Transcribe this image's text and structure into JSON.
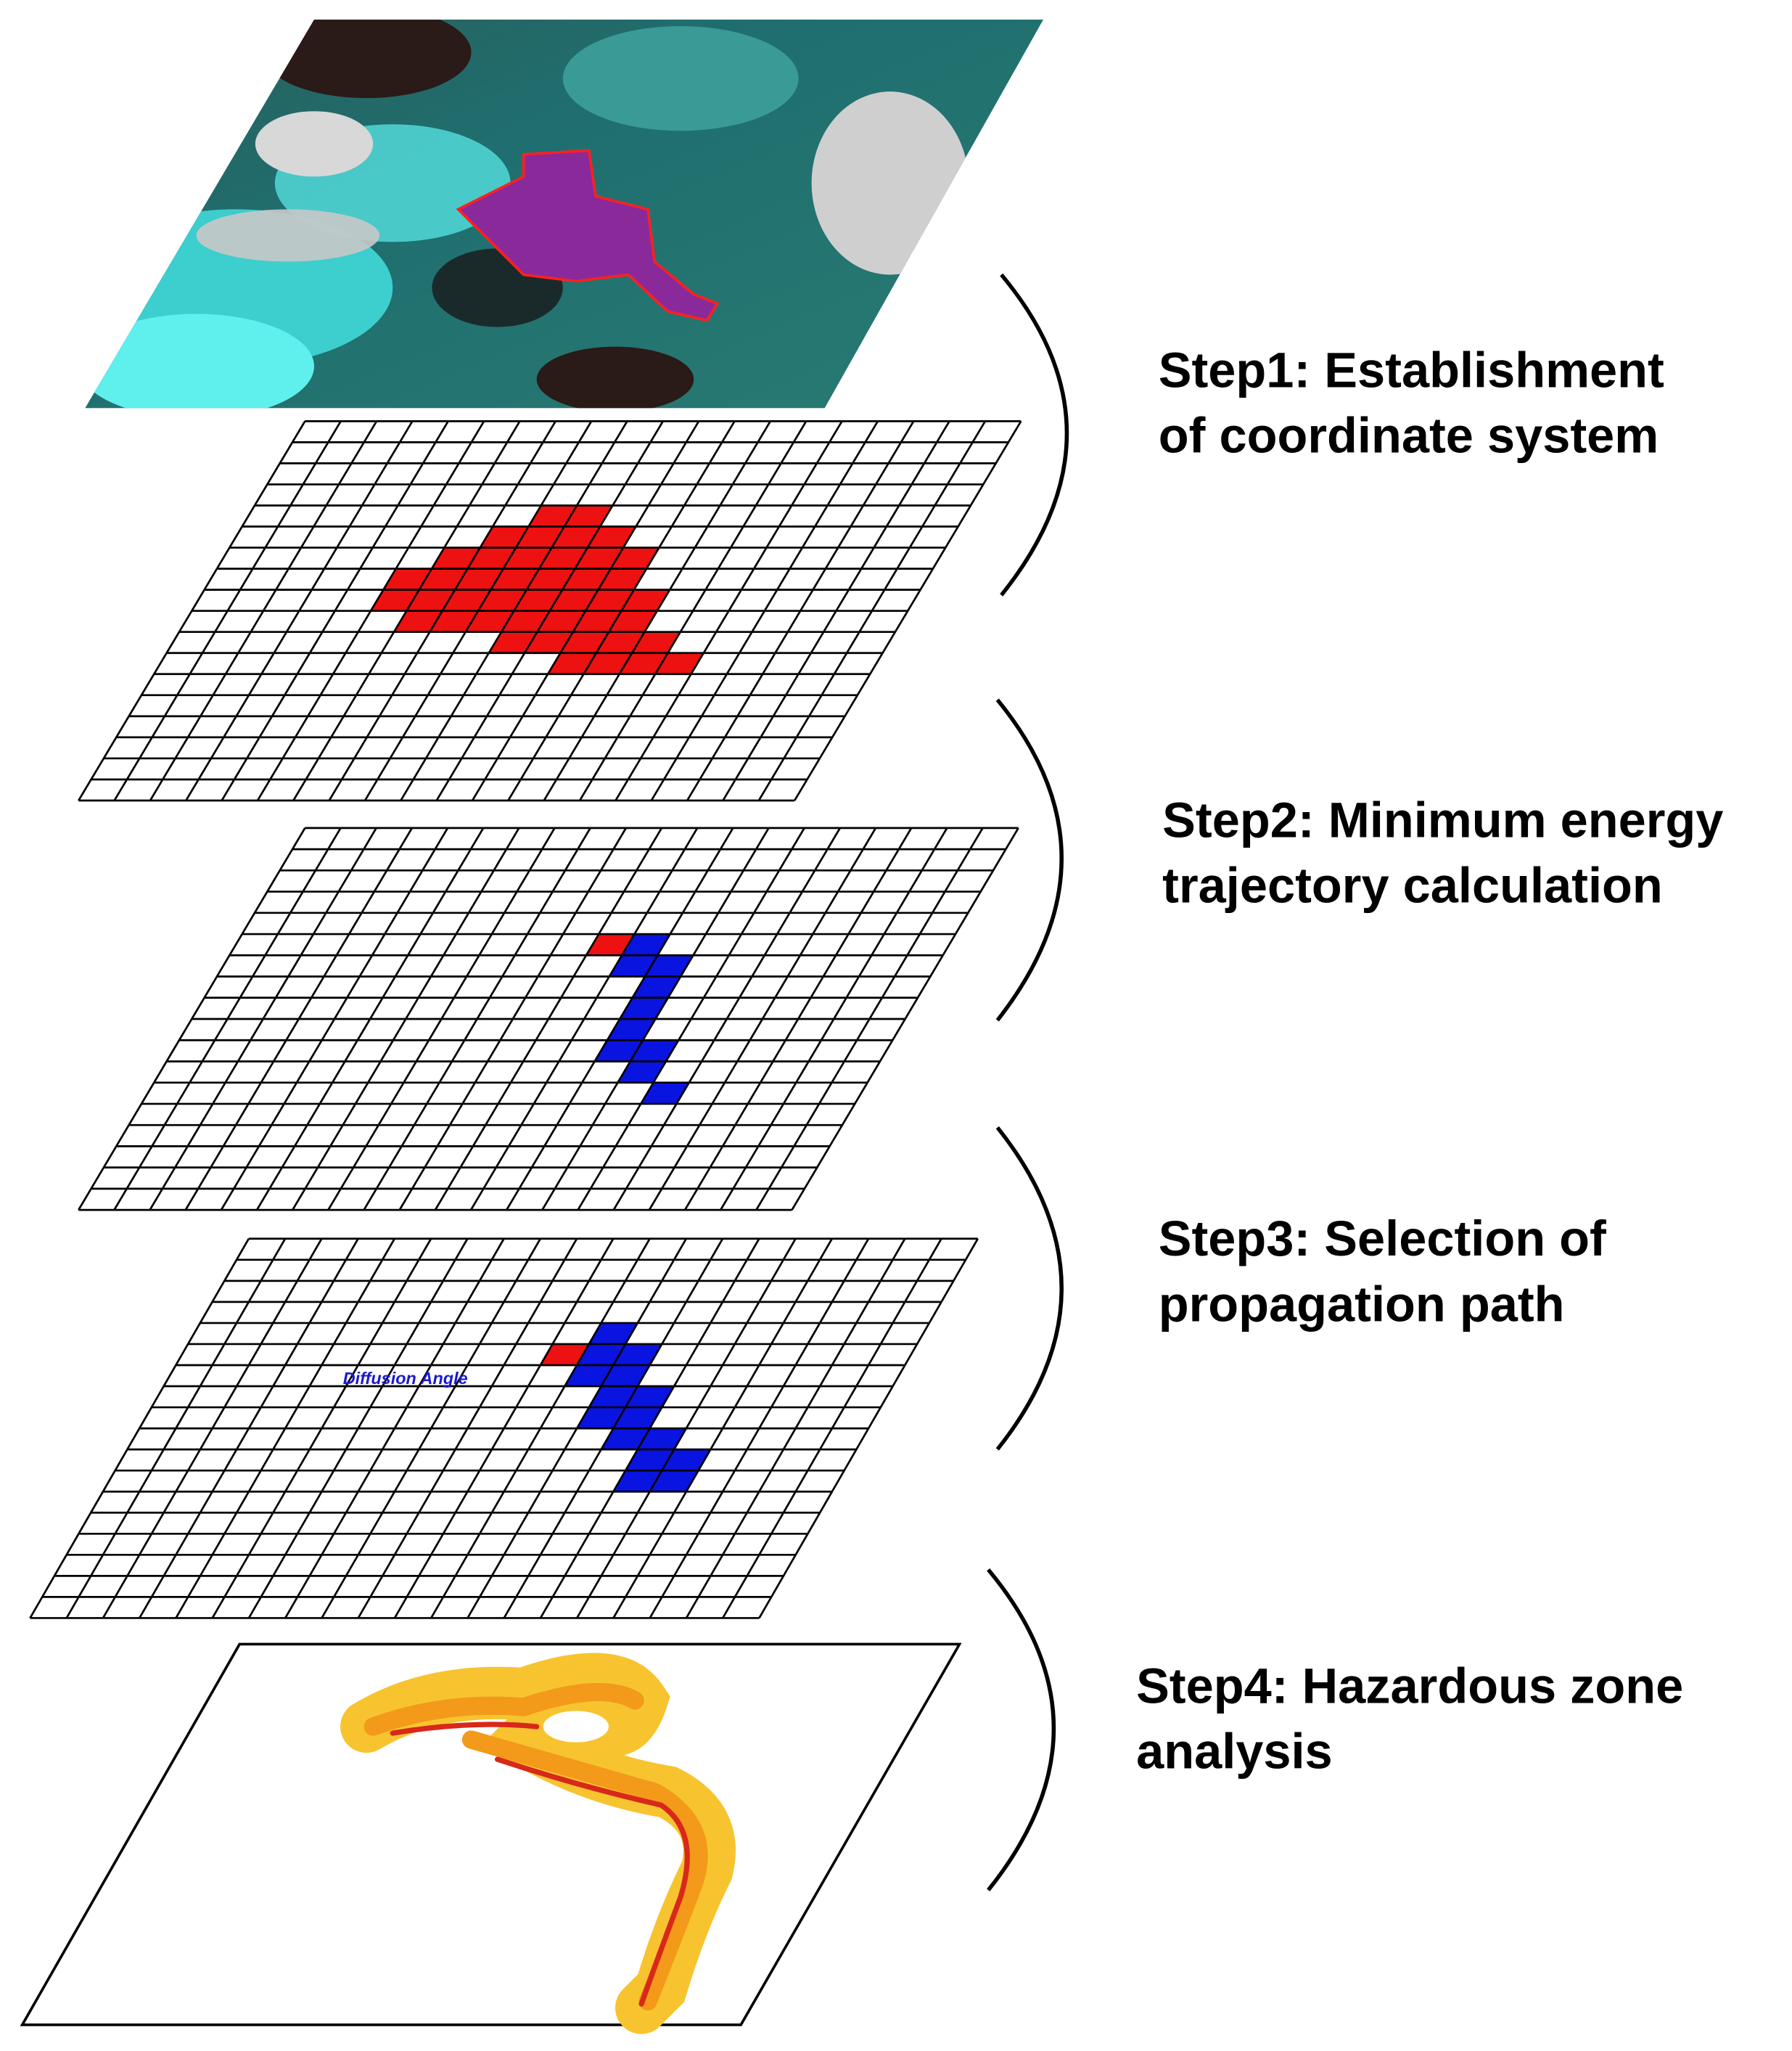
{
  "steps": [
    {
      "line1": "Step1: Establishment",
      "line2": "of coordinate system"
    },
    {
      "line1": "Step2: Minimum energy",
      "line2": "trajectory calculation"
    },
    {
      "line1": "Step3: Selection of",
      "line2": "propagation path"
    },
    {
      "line1": "Step4: Hazardous zone",
      "line2": "analysis"
    }
  ],
  "labels": {
    "diffusion_angle": "Diffusion Angle"
  }
}
